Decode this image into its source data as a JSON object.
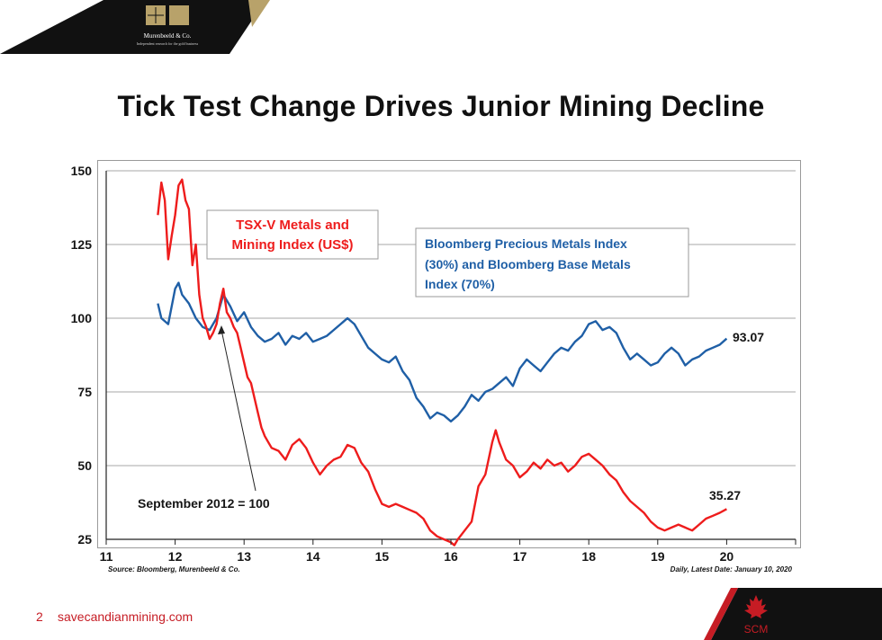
{
  "header": {
    "logo_name": "Murenbeeld & Co.",
    "logo_tagline": "Independent research for the gold business"
  },
  "title": "Tick Test Change Drives Junior Mining Decline",
  "footer": {
    "page_number": "2",
    "url": "savecandianmining.com",
    "brand": "SCM"
  },
  "colors": {
    "red_series": "#ee1c1c",
    "blue_series": "#1f5fa6",
    "gold": "#b8a26a",
    "black": "#151515"
  },
  "chart_data": {
    "type": "line",
    "title": "Tick Test Change Drives Junior Mining Decline",
    "xlabel": "",
    "ylabel": "",
    "xlim": [
      11,
      21
    ],
    "ylim": [
      25,
      150
    ],
    "x_ticks": [
      "11",
      "12",
      "13",
      "14",
      "15",
      "16",
      "17",
      "18",
      "19",
      "20"
    ],
    "y_ticks": [
      "150",
      "125",
      "100",
      "75",
      "50",
      "25"
    ],
    "grid": true,
    "series": [
      {
        "name": "TSX-V Metals and Mining Index (US$)",
        "color": "#ee1c1c",
        "x": [
          11.75,
          11.8,
          11.85,
          11.9,
          11.95,
          12.0,
          12.05,
          12.1,
          12.15,
          12.2,
          12.25,
          12.3,
          12.35,
          12.4,
          12.45,
          12.5,
          12.55,
          12.6,
          12.65,
          12.7,
          12.75,
          12.8,
          12.85,
          12.9,
          12.95,
          13.0,
          13.05,
          13.1,
          13.15,
          13.2,
          13.25,
          13.3,
          13.35,
          13.4,
          13.5,
          13.6,
          13.7,
          13.8,
          13.9,
          14.0,
          14.1,
          14.2,
          14.3,
          14.4,
          14.5,
          14.6,
          14.7,
          14.8,
          14.9,
          15.0,
          15.1,
          15.2,
          15.3,
          15.4,
          15.5,
          15.6,
          15.7,
          15.8,
          15.9,
          16.0,
          16.05,
          16.1,
          16.2,
          16.3,
          16.4,
          16.5,
          16.6,
          16.65,
          16.7,
          16.8,
          16.9,
          17.0,
          17.1,
          17.2,
          17.3,
          17.4,
          17.5,
          17.6,
          17.7,
          17.8,
          17.9,
          18.0,
          18.1,
          18.2,
          18.3,
          18.4,
          18.5,
          18.6,
          18.7,
          18.8,
          18.9,
          19.0,
          19.1,
          19.2,
          19.3,
          19.4,
          19.5,
          19.6,
          19.7,
          19.8,
          19.9,
          20.0
        ],
        "values": [
          135,
          146,
          140,
          120,
          128,
          135,
          145,
          147,
          140,
          137,
          118,
          125,
          108,
          100,
          97,
          93,
          95,
          98,
          105,
          110,
          102,
          100,
          97,
          95,
          90,
          85,
          80,
          78,
          73,
          68,
          63,
          60,
          58,
          56,
          55,
          52,
          57,
          59,
          56,
          51,
          47,
          50,
          52,
          53,
          57,
          56,
          51,
          48,
          42,
          37,
          36,
          37,
          36,
          35,
          34,
          32,
          28,
          26,
          25,
          24,
          23,
          25,
          28,
          31,
          43,
          47,
          58,
          62,
          58,
          52,
          50,
          46,
          48,
          51,
          49,
          52,
          50,
          51,
          48,
          50,
          53,
          54,
          52,
          50,
          47,
          45,
          41,
          38,
          36,
          34,
          31,
          29,
          28,
          29,
          30,
          29,
          28,
          30,
          32,
          33,
          34,
          35.27
        ]
      },
      {
        "name": "Bloomberg Precious Metals Index (30%) and Bloomberg Base Metals Index (70%)",
        "color": "#1f5fa6",
        "x": [
          11.75,
          11.8,
          11.9,
          12.0,
          12.05,
          12.1,
          12.2,
          12.3,
          12.4,
          12.5,
          12.6,
          12.7,
          12.8,
          12.9,
          13.0,
          13.1,
          13.2,
          13.3,
          13.4,
          13.5,
          13.6,
          13.7,
          13.8,
          13.9,
          14.0,
          14.1,
          14.2,
          14.3,
          14.4,
          14.5,
          14.6,
          14.7,
          14.8,
          14.9,
          15.0,
          15.1,
          15.2,
          15.3,
          15.4,
          15.5,
          15.6,
          15.7,
          15.8,
          15.9,
          16.0,
          16.1,
          16.2,
          16.3,
          16.4,
          16.5,
          16.6,
          16.7,
          16.8,
          16.9,
          17.0,
          17.1,
          17.2,
          17.3,
          17.4,
          17.5,
          17.6,
          17.7,
          17.8,
          17.9,
          18.0,
          18.1,
          18.2,
          18.3,
          18.4,
          18.5,
          18.6,
          18.7,
          18.8,
          18.9,
          19.0,
          19.1,
          19.2,
          19.3,
          19.4,
          19.5,
          19.6,
          19.7,
          19.8,
          19.9,
          20.0
        ],
        "values": [
          105,
          100,
          98,
          110,
          112,
          108,
          105,
          100,
          97,
          96,
          100,
          108,
          104,
          99,
          102,
          97,
          94,
          92,
          93,
          95,
          91,
          94,
          93,
          95,
          92,
          93,
          94,
          96,
          98,
          100,
          98,
          94,
          90,
          88,
          86,
          85,
          87,
          82,
          79,
          73,
          70,
          66,
          68,
          67,
          65,
          67,
          70,
          74,
          72,
          75,
          76,
          78,
          80,
          77,
          83,
          86,
          84,
          82,
          85,
          88,
          90,
          89,
          92,
          94,
          98,
          99,
          96,
          97,
          95,
          90,
          86,
          88,
          86,
          84,
          85,
          88,
          90,
          88,
          84,
          86,
          87,
          89,
          90,
          91,
          93.07
        ]
      }
    ],
    "annotations": {
      "red_label_line1": "TSX-V Metals and",
      "red_label_line2": "Mining Index (US$)",
      "blue_label_line1": "Bloomberg Precious Metals Index",
      "blue_label_line2": "(30%) and Bloomberg Base Metals",
      "blue_label_line3": "Index (70%)",
      "september_label": "September 2012 = 100",
      "blue_end_value": "93.07",
      "red_end_value": "35.27",
      "source": "Source: Bloomberg, Murenbeeld & Co.",
      "date_note": "Daily, Latest Date: January 10, 2020"
    }
  }
}
